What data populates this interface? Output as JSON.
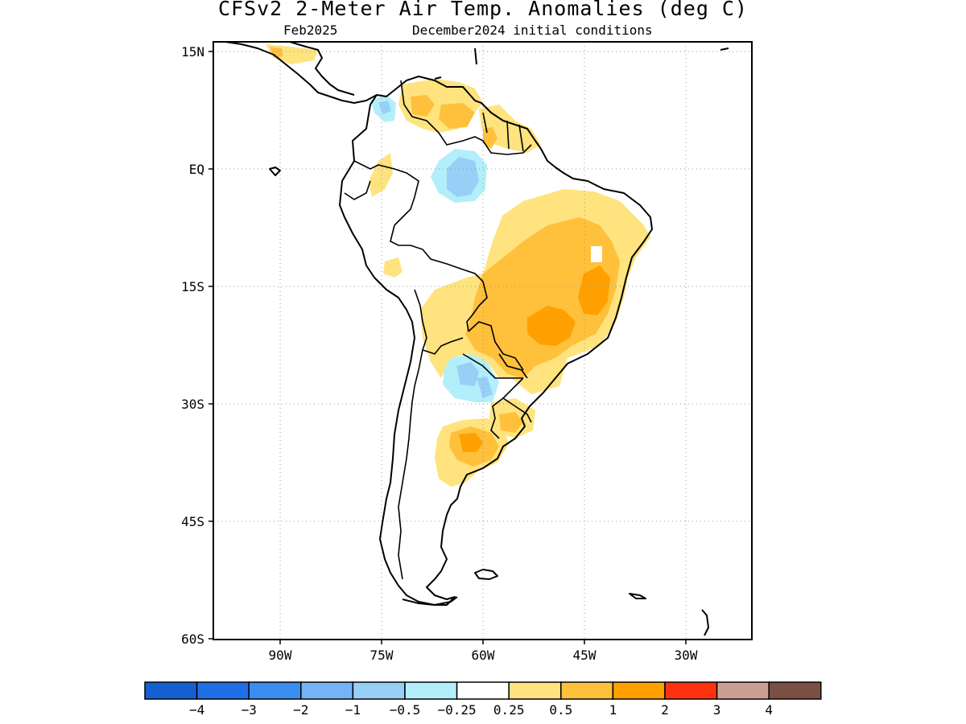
{
  "title": "CFSv2 2-Meter Air Temp. Anomalies (deg C)",
  "subtitle_left": "Feb2025",
  "subtitle_right": "December2024 initial conditions",
  "lat_ticks": [
    {
      "label": "15N",
      "lat": 15
    },
    {
      "label": "EQ",
      "lat": 0
    },
    {
      "label": "15S",
      "lat": -15
    },
    {
      "label": "30S",
      "lat": -30
    },
    {
      "label": "45S",
      "lat": -45
    },
    {
      "label": "60S",
      "lat": -60
    }
  ],
  "lon_ticks": [
    {
      "label": "90W",
      "lon": -90
    },
    {
      "label": "75W",
      "lon": -75
    },
    {
      "label": "60W",
      "lon": -60
    },
    {
      "label": "45W",
      "lon": -45
    },
    {
      "label": "30W",
      "lon": -30
    }
  ],
  "colorbar": {
    "colors": [
      "#1560d0",
      "#1f6fe6",
      "#3b8ef0",
      "#76b2f7",
      "#96d0f7",
      "#b2effa",
      "#ffffff",
      "#ffe37e",
      "#ffc03c",
      "#ffa000",
      "#ff3210",
      "#caa094",
      "#7a5044"
    ],
    "labels": [
      "−4",
      "−3",
      "−2",
      "−1",
      "−0.5",
      "−0.25",
      "0.25",
      "0.5",
      "1",
      "2",
      "3",
      "4"
    ]
  },
  "anomaly_colors": {
    "pale_yellow": "#ffe37e",
    "orange_light": "#ffc03c",
    "orange": "#ffa000",
    "light_blue": "#b2effa",
    "blue": "#96d0f7",
    "mid_blue": "#76b2f7"
  }
}
